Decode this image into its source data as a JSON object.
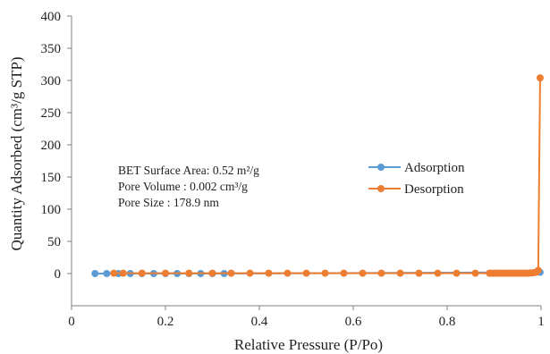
{
  "chart_data": {
    "type": "scatter",
    "xlabel": "Relative Pressure (P/Po)",
    "ylabel": "Quantity Adsorbed (cm³/g STP)",
    "xlim": [
      0,
      1
    ],
    "ylim": [
      -50,
      400
    ],
    "x_ticks": [
      0,
      0.2,
      0.4,
      0.6,
      0.8,
      1
    ],
    "x_tick_labels": [
      "0",
      "0.2",
      "0.4",
      "0.6",
      "0.8",
      "1"
    ],
    "y_ticks": [
      0,
      50,
      100,
      150,
      200,
      250,
      300,
      350,
      400
    ],
    "y_tick_labels": [
      "0",
      "50",
      "100",
      "150",
      "200",
      "250",
      "300",
      "350",
      "400"
    ],
    "grid": false,
    "legend_position": "center-right",
    "annotations": [
      "BET Surface Area: 0.52 m²/g",
      "Pore Volume : 0.002 cm³/g",
      "Pore Size : 178.9 nm"
    ],
    "series": [
      {
        "name": "Adsorption",
        "color": "#5b9bd5",
        "style": "line-with-markers",
        "x": [
          0.05,
          0.075,
          0.1,
          0.125,
          0.15,
          0.175,
          0.2,
          0.225,
          0.25,
          0.275,
          0.3,
          0.325,
          0.998
        ],
        "y": [
          0,
          0,
          0,
          0,
          0,
          0,
          0,
          0,
          0,
          0,
          0,
          0,
          2
        ]
      },
      {
        "name": "Desorption",
        "color": "#ed7d31",
        "style": "line-with-markers",
        "x": [
          0.998,
          0.994,
          0.99,
          0.986,
          0.982,
          0.978,
          0.974,
          0.97,
          0.966,
          0.962,
          0.958,
          0.954,
          0.95,
          0.946,
          0.942,
          0.938,
          0.934,
          0.93,
          0.926,
          0.922,
          0.918,
          0.914,
          0.91,
          0.906,
          0.902,
          0.898,
          0.894,
          0.89,
          0.86,
          0.82,
          0.78,
          0.74,
          0.7,
          0.66,
          0.62,
          0.58,
          0.54,
          0.5,
          0.46,
          0.42,
          0.38,
          0.34,
          0.3,
          0.25,
          0.2,
          0.15,
          0.11,
          0.09
        ],
        "y": [
          304,
          5,
          2,
          1.5,
          1,
          1,
          0.5,
          0.5,
          0.5,
          0.5,
          0.5,
          0.5,
          0.5,
          0.5,
          0.5,
          0.5,
          0.5,
          0.5,
          0.5,
          0.5,
          0.5,
          0.5,
          0.5,
          0.5,
          0.5,
          0.5,
          0.5,
          0.5,
          0.5,
          0.5,
          0.5,
          0.5,
          0.5,
          0.5,
          0.5,
          0.5,
          0.5,
          0.5,
          0.5,
          0.5,
          0.5,
          0.5,
          0.5,
          0.5,
          0.5,
          0.5,
          0.5,
          0.5
        ]
      }
    ]
  }
}
